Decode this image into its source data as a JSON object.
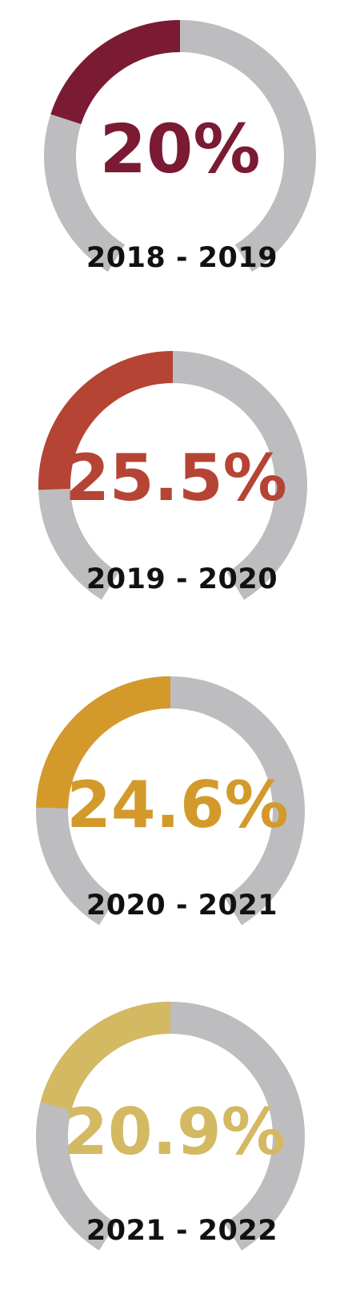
{
  "chart_data": [
    {
      "type": "gauge",
      "value": 20,
      "max": 100,
      "value_label": "20%",
      "category": "2018 - 2019",
      "fill_color": "#7a1a33",
      "track_color": "#bdbdbf"
    },
    {
      "type": "gauge",
      "value": 25.5,
      "max": 100,
      "value_label": "25.5%",
      "category": "2019 - 2020",
      "fill_color": "#b54434",
      "track_color": "#bdbdbf"
    },
    {
      "type": "gauge",
      "value": 24.6,
      "max": 100,
      "value_label": "24.6%",
      "category": "2020 - 2021",
      "fill_color": "#d39a2b",
      "track_color": "#bdbdbf"
    },
    {
      "type": "gauge",
      "value": 20.9,
      "max": 100,
      "value_label": "20.9%",
      "category": "2021 - 2022",
      "fill_color": "#d4b963",
      "track_color": "#bdbdbf"
    }
  ]
}
